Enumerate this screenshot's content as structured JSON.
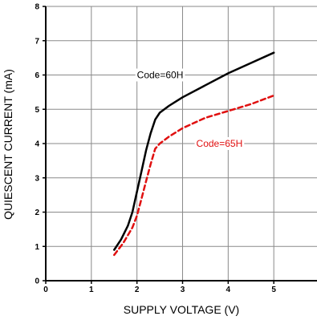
{
  "chart_data": {
    "type": "line",
    "title": "",
    "xlabel": "SUPPLY VOLTAGE (V)",
    "ylabel": "QUIESCENT CURRENT (mA)",
    "xlim": [
      0,
      6
    ],
    "ylim": [
      0,
      8
    ],
    "x_ticks": [
      0,
      1,
      2,
      3,
      4,
      5,
      6
    ],
    "y_ticks": [
      0,
      1,
      2,
      3,
      4,
      5,
      6,
      7,
      8
    ],
    "x_tick_labels": [
      "0",
      "1",
      "2",
      "3",
      "4",
      "5",
      "6"
    ],
    "y_tick_labels": [
      "0",
      "1",
      "2",
      "3",
      "4",
      "5",
      "6",
      "7",
      "8"
    ],
    "grid": true,
    "legend": "none",
    "series": [
      {
        "name": "Code=60H",
        "color": "#000000",
        "line_style": "solid",
        "label_at": [
          2.0,
          6.0
        ],
        "x": [
          1.5,
          1.65,
          1.8,
          1.9,
          2.0,
          2.1,
          2.2,
          2.3,
          2.4,
          2.5,
          2.7,
          3.0,
          3.5,
          4.0,
          4.5,
          5.0
        ],
        "y": [
          0.9,
          1.2,
          1.6,
          2.0,
          2.6,
          3.2,
          3.8,
          4.3,
          4.7,
          4.9,
          5.1,
          5.35,
          5.7,
          6.05,
          6.35,
          6.65
        ]
      },
      {
        "name": "Code=65H",
        "color": "#e01010",
        "line_style": "dashed",
        "label_at": [
          3.3,
          4.0
        ],
        "x": [
          1.5,
          1.7,
          1.9,
          2.0,
          2.1,
          2.2,
          2.3,
          2.4,
          2.5,
          2.7,
          3.0,
          3.5,
          4.0,
          4.5,
          5.0
        ],
        "y": [
          0.75,
          1.1,
          1.55,
          1.9,
          2.4,
          2.9,
          3.4,
          3.85,
          4.0,
          4.2,
          4.45,
          4.75,
          4.95,
          5.15,
          5.4
        ]
      }
    ]
  }
}
